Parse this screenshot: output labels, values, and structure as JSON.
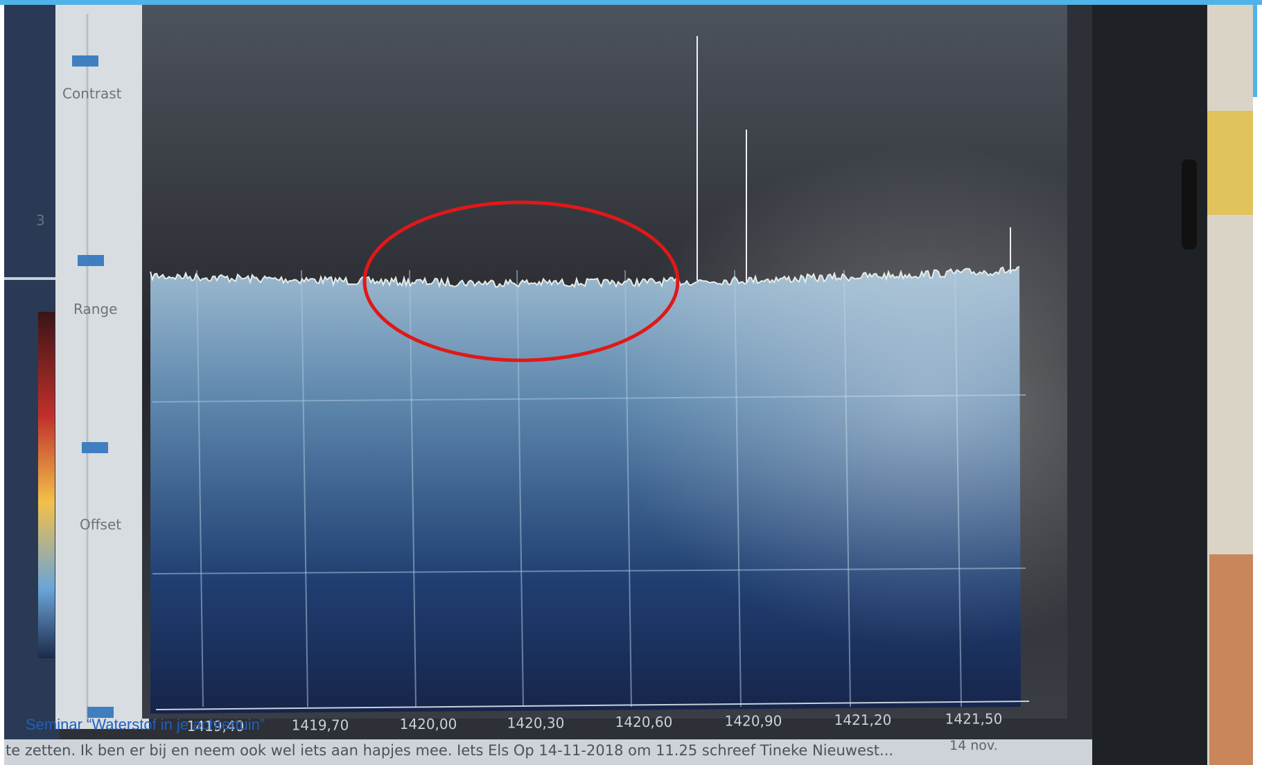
{
  "sidebar": {
    "labels": [
      "Contrast",
      "Range",
      "Offset"
    ],
    "small_number": "3"
  },
  "spectrum": {
    "xtick_labels": [
      "1419,40",
      "1419,70",
      "1420,00",
      "1420,30",
      "1420,60",
      "1420,90",
      "1421,20",
      "1421,50"
    ]
  },
  "taskbar": {
    "message": "te zetten. Ik ben er bij en neem ook wel iets aan hapjes mee. Iets Els Op 14-11-2018 om 11.25 schreef Tineke Nieuwest...",
    "date": "14 nov."
  },
  "caption": "Seminar “Waterstof in je achtertuin”"
}
